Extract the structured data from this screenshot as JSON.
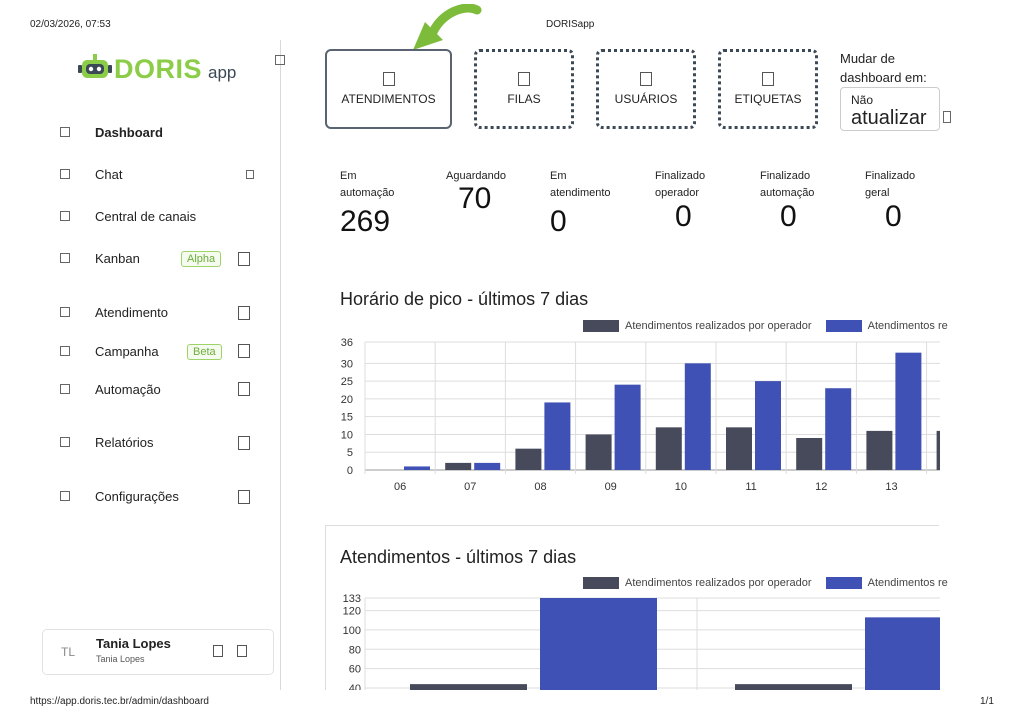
{
  "print_header": {
    "datetime": "02/03/2026, 07:53",
    "title": "DORISapp"
  },
  "print_footer": {
    "url": "https://app.doris.tec.br/admin/dashboard",
    "page": "1/1"
  },
  "logo": {
    "text_main": "DORIS",
    "text_sub": "app"
  },
  "sidebar": {
    "items": [
      {
        "label": "Dashboard",
        "active": true
      },
      {
        "label": "Chat"
      },
      {
        "label": "Central de canais"
      },
      {
        "label": "Kanban",
        "badge": "Alpha"
      },
      {
        "label": "Atendimento"
      },
      {
        "label": "Campanha",
        "badge": "Beta"
      },
      {
        "label": "Automação"
      },
      {
        "label": "Relatórios"
      },
      {
        "label": "Configurações"
      }
    ],
    "user": {
      "initials": "TL",
      "name": "Tania Lopes",
      "subtitle": "Tania Lopes"
    }
  },
  "tabs": [
    {
      "label": "ATENDIMENTOS",
      "active": true
    },
    {
      "label": "FILAS"
    },
    {
      "label": "USUÁRIOS"
    },
    {
      "label": "ETIQUETAS"
    }
  ],
  "refresh": {
    "label": "Mudar de dashboard em:",
    "select_line1": "Não",
    "select_line2": "atualizar"
  },
  "stats": [
    {
      "label_1": "Em",
      "label_2": "automação",
      "value": "269"
    },
    {
      "label_1": "Aguardando",
      "label_2": "",
      "value": "70"
    },
    {
      "label_1": "Em",
      "label_2": "atendimento",
      "value": "0"
    },
    {
      "label_1": "Finalizado",
      "label_2": "operador",
      "value": "0"
    },
    {
      "label_1": "Finalizado",
      "label_2": "automação",
      "value": "0"
    },
    {
      "label_1": "Finalizado",
      "label_2": "geral",
      "value": "0"
    }
  ],
  "colors": {
    "operator": "#474a5a",
    "automation": "#3f51b5",
    "accent_green": "#8ccd48"
  },
  "chart_data": [
    {
      "type": "bar",
      "title": "Horário de pico - últimos 7 dias",
      "categories": [
        "06",
        "07",
        "08",
        "09",
        "10",
        "11",
        "12",
        "13"
      ],
      "legend": [
        "Atendimentos realizados por operador",
        "Atendimentos re"
      ],
      "series": [
        {
          "name": "Atendimentos realizados por operador",
          "values": [
            0,
            2,
            6,
            10,
            12,
            12,
            9,
            11
          ]
        },
        {
          "name": "Atendimentos re",
          "values": [
            1,
            2,
            19,
            24,
            30,
            25,
            23,
            33
          ]
        }
      ],
      "partial_last_value": 11,
      "ylim": [
        0,
        36
      ],
      "yticks": [
        "0",
        "5",
        "10",
        "15",
        "20",
        "25",
        "30",
        "36"
      ],
      "grid": true,
      "legend_placement": "top"
    },
    {
      "type": "bar",
      "title": "Atendimentos - últimos 7 dias",
      "legend": [
        "Atendimentos realizados por operador",
        "Atendimentos re"
      ],
      "series": [
        {
          "name": "Atendimentos realizados por operador",
          "values": [
            44,
            44
          ]
        },
        {
          "name": "Atendimentos re",
          "values": [
            133,
            113
          ]
        }
      ],
      "yticks": [
        "40",
        "60",
        "80",
        "100",
        "120",
        "133"
      ],
      "ylim": [
        40,
        133
      ],
      "grid": true,
      "legend_placement": "top"
    }
  ]
}
